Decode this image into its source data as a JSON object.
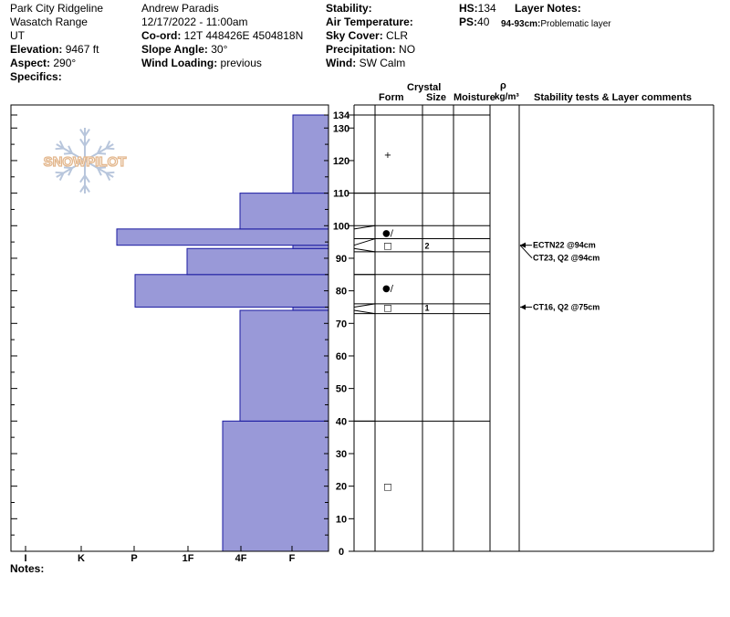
{
  "header": {
    "col1": {
      "location": "Park City Ridgeline",
      "range": "Wasatch Range",
      "state": "UT",
      "elevation_label": "Elevation:",
      "elevation": "9467 ft",
      "aspect_label": "Aspect:",
      "aspect": "290°",
      "specifics_label": "Specifics:"
    },
    "col2": {
      "observer": "Andrew Paradis",
      "datetime": "12/17/2022 - 11:00am",
      "coord_label": "Co-ord:",
      "coord": "12T 448426E 4504818N",
      "slope_label": "Slope Angle:",
      "slope": "30°",
      "wind_loading_label": "Wind Loading:",
      "wind_loading": "previous"
    },
    "col3": {
      "stability_label": "Stability:",
      "stability": "",
      "air_temp_label": "Air Temperature:",
      "air_temp": "",
      "sky_label": "Sky Cover:",
      "sky": "CLR",
      "precip_label": "Precipitation:",
      "precip": "NO",
      "wind_label": "Wind:",
      "wind": "SW Calm"
    },
    "col4": {
      "hs_label": "HS:",
      "hs": "134",
      "ps_label": "PS:",
      "ps": "40",
      "layer_notes_label": "Layer Notes:",
      "layer_note_range": "94-93cm:",
      "layer_note_text": "Problematic layer"
    }
  },
  "logo_text": "SNOWPILOT",
  "notes_label": "Notes:",
  "columns": {
    "crystal": "Crystal",
    "form": "Form",
    "size": "Size",
    "moisture": "Moisture",
    "rho": "ρ",
    "density_unit": "kg/m³",
    "stability_tests": "Stability tests & Layer comments"
  },
  "chart_data": {
    "type": "bar",
    "title": "",
    "xlabel": "",
    "ylabel": "",
    "x_ticks": [
      "I",
      "K",
      "P",
      "1F",
      "4F",
      "F"
    ],
    "ylim": [
      0,
      134
    ],
    "y_ticks": [
      0,
      10,
      20,
      30,
      40,
      50,
      60,
      70,
      80,
      90,
      100,
      110,
      120,
      130,
      134
    ],
    "hand_hardness_profile": [
      {
        "bottom": 0,
        "top": 40,
        "hardness": "4F-"
      },
      {
        "bottom": 40,
        "top": 74,
        "hardness": "4F"
      },
      {
        "bottom": 74,
        "top": 75,
        "hardness": "F"
      },
      {
        "bottom": 75,
        "top": 85,
        "hardness": "P-"
      },
      {
        "bottom": 85,
        "top": 93,
        "hardness": "1F-"
      },
      {
        "bottom": 93,
        "top": 94,
        "hardness": "F"
      },
      {
        "bottom": 94,
        "top": 99,
        "hardness": "P+"
      },
      {
        "bottom": 99,
        "top": 110,
        "hardness": "4F"
      },
      {
        "bottom": 110,
        "top": 134,
        "hardness": "F"
      }
    ],
    "layer_boundaries": [
      134,
      110,
      100,
      96,
      92,
      85,
      76,
      73,
      40
    ],
    "layer_grains": [
      {
        "height": 122,
        "form": "+",
        "size": ""
      },
      {
        "height": 98,
        "form": "●/",
        "size": ""
      },
      {
        "height": 94,
        "form": "□",
        "size": "2"
      },
      {
        "height": 81,
        "form": "●/",
        "size": ""
      },
      {
        "height": 75,
        "form": "□",
        "size": "1"
      },
      {
        "height": 20,
        "form": "□",
        "size": ""
      }
    ],
    "stability_tests": [
      {
        "height": 94,
        "text": "ECTN22 @94cm"
      },
      {
        "height": 94,
        "text": "CT23, Q2 @94cm"
      },
      {
        "height": 75,
        "text": "CT16, Q2 @75cm"
      }
    ],
    "bar_color": "#9999d8",
    "bar_edge_color": "#1a1aa0"
  }
}
